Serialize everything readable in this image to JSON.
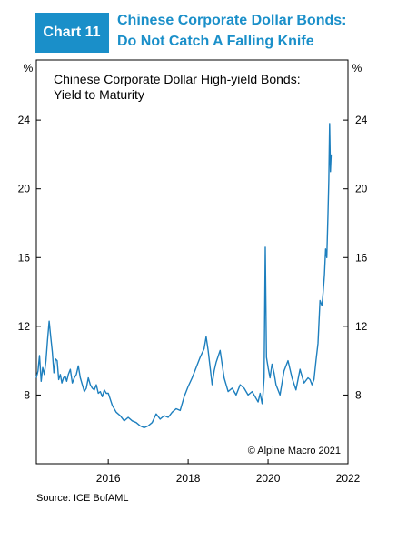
{
  "header": {
    "badge": "Chart 11",
    "title_line1": "Chinese Corporate Dollar Bonds:",
    "title_line2": "Do Not Catch A Falling Knife"
  },
  "colors": {
    "accent": "#1a8fc9",
    "line": "#1d7fbe",
    "axis": "#000000"
  },
  "chart_data": {
    "type": "line",
    "title": "Chinese Corporate Dollar High-yield Bonds:",
    "subtitle": "Yield to Maturity",
    "yunit_left": "%",
    "yunit_right": "%",
    "copyright": "© Alpine Macro 2021",
    "source": "Source: ICE BofAML",
    "xlim": [
      2014.2,
      2022.0
    ],
    "ylim": [
      4.0,
      27.5
    ],
    "x_ticks": [
      2016,
      2018,
      2020,
      2022
    ],
    "y_ticks": [
      8,
      12,
      16,
      20,
      24
    ],
    "grid": false,
    "series": [
      {
        "x": [
          2014.2,
          2014.24,
          2014.28,
          2014.32,
          2014.36,
          2014.4,
          2014.44,
          2014.48,
          2014.52,
          2014.56,
          2014.6,
          2014.64,
          2014.68,
          2014.72,
          2014.76,
          2014.8,
          2014.84,
          2014.88,
          2014.92,
          2014.96,
          2015.0,
          2015.05,
          2015.1,
          2015.15,
          2015.2,
          2015.25,
          2015.3,
          2015.35,
          2015.4,
          2015.45,
          2015.5,
          2015.55,
          2015.6,
          2015.65,
          2015.7,
          2015.75,
          2015.8,
          2015.85,
          2015.9,
          2015.95,
          2016.0,
          2016.1,
          2016.2,
          2016.3,
          2016.4,
          2016.5,
          2016.6,
          2016.7,
          2016.8,
          2016.9,
          2017.0,
          2017.1,
          2017.2,
          2017.3,
          2017.4,
          2017.5,
          2017.6,
          2017.7,
          2017.8,
          2017.9,
          2018.0,
          2018.1,
          2018.2,
          2018.3,
          2018.4,
          2018.45,
          2018.5,
          2018.55,
          2018.6,
          2018.65,
          2018.7,
          2018.8,
          2018.9,
          2019.0,
          2019.1,
          2019.2,
          2019.3,
          2019.4,
          2019.5,
          2019.6,
          2019.7,
          2019.75,
          2019.8,
          2019.85,
          2019.87,
          2019.9,
          2019.93,
          2019.96,
          2020.0,
          2020.05,
          2020.1,
          2020.15,
          2020.2,
          2020.3,
          2020.4,
          2020.5,
          2020.6,
          2020.7,
          2020.8,
          2020.9,
          2021.0,
          2021.05,
          2021.1,
          2021.15,
          2021.2,
          2021.25,
          2021.3,
          2021.35,
          2021.38,
          2021.41,
          2021.44,
          2021.47,
          2021.5,
          2021.52,
          2021.54,
          2021.56,
          2021.58
        ],
        "y": [
          9.0,
          9.4,
          10.3,
          8.8,
          9.6,
          9.2,
          10.0,
          11.2,
          12.3,
          11.4,
          10.5,
          9.3,
          10.1,
          10.0,
          8.9,
          9.2,
          8.7,
          9.0,
          9.1,
          8.8,
          9.2,
          9.5,
          8.7,
          9.0,
          9.2,
          9.7,
          9.0,
          8.6,
          8.2,
          8.4,
          9.0,
          8.6,
          8.4,
          8.3,
          8.6,
          8.1,
          8.2,
          7.9,
          8.3,
          8.1,
          8.1,
          7.4,
          7.0,
          6.8,
          6.5,
          6.7,
          6.5,
          6.4,
          6.2,
          6.1,
          6.2,
          6.4,
          6.9,
          6.6,
          6.8,
          6.7,
          7.0,
          7.2,
          7.1,
          7.9,
          8.5,
          9.0,
          9.6,
          10.2,
          10.7,
          11.4,
          10.6,
          9.6,
          8.6,
          9.4,
          9.9,
          10.6,
          9.0,
          8.2,
          8.4,
          8.0,
          8.6,
          8.4,
          8.0,
          8.2,
          7.8,
          7.6,
          8.1,
          7.5,
          7.9,
          9.0,
          16.6,
          10.2,
          9.6,
          9.0,
          9.8,
          9.3,
          8.6,
          8.0,
          9.4,
          10.0,
          9.0,
          8.3,
          9.5,
          8.7,
          9.0,
          8.9,
          8.6,
          8.9,
          10.0,
          11.0,
          13.5,
          13.2,
          14.0,
          15.0,
          16.5,
          16.0,
          18.5,
          20.5,
          23.8,
          21.0,
          22.0
        ]
      }
    ]
  }
}
